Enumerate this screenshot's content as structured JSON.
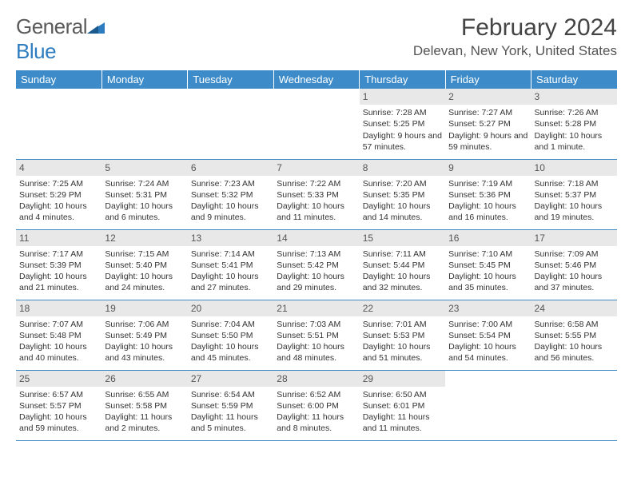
{
  "logo": {
    "word1": "General",
    "word2": "Blue"
  },
  "title": "February 2024",
  "location": "Delevan, New York, United States",
  "colors": {
    "header_bg": "#3d8cc9",
    "header_text": "#ffffff",
    "daynum_bg": "#e8e8e8",
    "daynum_text": "#555555",
    "border": "#3d8cc9",
    "logo_blue": "#2d7cc0",
    "logo_gray": "#5a5a5a"
  },
  "weekdays": [
    "Sunday",
    "Monday",
    "Tuesday",
    "Wednesday",
    "Thursday",
    "Friday",
    "Saturday"
  ],
  "weeks": [
    [
      null,
      null,
      null,
      null,
      {
        "n": "1",
        "sr": "Sunrise: 7:28 AM",
        "ss": "Sunset: 5:25 PM",
        "dl": "Daylight: 9 hours and 57 minutes."
      },
      {
        "n": "2",
        "sr": "Sunrise: 7:27 AM",
        "ss": "Sunset: 5:27 PM",
        "dl": "Daylight: 9 hours and 59 minutes."
      },
      {
        "n": "3",
        "sr": "Sunrise: 7:26 AM",
        "ss": "Sunset: 5:28 PM",
        "dl": "Daylight: 10 hours and 1 minute."
      }
    ],
    [
      {
        "n": "4",
        "sr": "Sunrise: 7:25 AM",
        "ss": "Sunset: 5:29 PM",
        "dl": "Daylight: 10 hours and 4 minutes."
      },
      {
        "n": "5",
        "sr": "Sunrise: 7:24 AM",
        "ss": "Sunset: 5:31 PM",
        "dl": "Daylight: 10 hours and 6 minutes."
      },
      {
        "n": "6",
        "sr": "Sunrise: 7:23 AM",
        "ss": "Sunset: 5:32 PM",
        "dl": "Daylight: 10 hours and 9 minutes."
      },
      {
        "n": "7",
        "sr": "Sunrise: 7:22 AM",
        "ss": "Sunset: 5:33 PM",
        "dl": "Daylight: 10 hours and 11 minutes."
      },
      {
        "n": "8",
        "sr": "Sunrise: 7:20 AM",
        "ss": "Sunset: 5:35 PM",
        "dl": "Daylight: 10 hours and 14 minutes."
      },
      {
        "n": "9",
        "sr": "Sunrise: 7:19 AM",
        "ss": "Sunset: 5:36 PM",
        "dl": "Daylight: 10 hours and 16 minutes."
      },
      {
        "n": "10",
        "sr": "Sunrise: 7:18 AM",
        "ss": "Sunset: 5:37 PM",
        "dl": "Daylight: 10 hours and 19 minutes."
      }
    ],
    [
      {
        "n": "11",
        "sr": "Sunrise: 7:17 AM",
        "ss": "Sunset: 5:39 PM",
        "dl": "Daylight: 10 hours and 21 minutes."
      },
      {
        "n": "12",
        "sr": "Sunrise: 7:15 AM",
        "ss": "Sunset: 5:40 PM",
        "dl": "Daylight: 10 hours and 24 minutes."
      },
      {
        "n": "13",
        "sr": "Sunrise: 7:14 AM",
        "ss": "Sunset: 5:41 PM",
        "dl": "Daylight: 10 hours and 27 minutes."
      },
      {
        "n": "14",
        "sr": "Sunrise: 7:13 AM",
        "ss": "Sunset: 5:42 PM",
        "dl": "Daylight: 10 hours and 29 minutes."
      },
      {
        "n": "15",
        "sr": "Sunrise: 7:11 AM",
        "ss": "Sunset: 5:44 PM",
        "dl": "Daylight: 10 hours and 32 minutes."
      },
      {
        "n": "16",
        "sr": "Sunrise: 7:10 AM",
        "ss": "Sunset: 5:45 PM",
        "dl": "Daylight: 10 hours and 35 minutes."
      },
      {
        "n": "17",
        "sr": "Sunrise: 7:09 AM",
        "ss": "Sunset: 5:46 PM",
        "dl": "Daylight: 10 hours and 37 minutes."
      }
    ],
    [
      {
        "n": "18",
        "sr": "Sunrise: 7:07 AM",
        "ss": "Sunset: 5:48 PM",
        "dl": "Daylight: 10 hours and 40 minutes."
      },
      {
        "n": "19",
        "sr": "Sunrise: 7:06 AM",
        "ss": "Sunset: 5:49 PM",
        "dl": "Daylight: 10 hours and 43 minutes."
      },
      {
        "n": "20",
        "sr": "Sunrise: 7:04 AM",
        "ss": "Sunset: 5:50 PM",
        "dl": "Daylight: 10 hours and 45 minutes."
      },
      {
        "n": "21",
        "sr": "Sunrise: 7:03 AM",
        "ss": "Sunset: 5:51 PM",
        "dl": "Daylight: 10 hours and 48 minutes."
      },
      {
        "n": "22",
        "sr": "Sunrise: 7:01 AM",
        "ss": "Sunset: 5:53 PM",
        "dl": "Daylight: 10 hours and 51 minutes."
      },
      {
        "n": "23",
        "sr": "Sunrise: 7:00 AM",
        "ss": "Sunset: 5:54 PM",
        "dl": "Daylight: 10 hours and 54 minutes."
      },
      {
        "n": "24",
        "sr": "Sunrise: 6:58 AM",
        "ss": "Sunset: 5:55 PM",
        "dl": "Daylight: 10 hours and 56 minutes."
      }
    ],
    [
      {
        "n": "25",
        "sr": "Sunrise: 6:57 AM",
        "ss": "Sunset: 5:57 PM",
        "dl": "Daylight: 10 hours and 59 minutes."
      },
      {
        "n": "26",
        "sr": "Sunrise: 6:55 AM",
        "ss": "Sunset: 5:58 PM",
        "dl": "Daylight: 11 hours and 2 minutes."
      },
      {
        "n": "27",
        "sr": "Sunrise: 6:54 AM",
        "ss": "Sunset: 5:59 PM",
        "dl": "Daylight: 11 hours and 5 minutes."
      },
      {
        "n": "28",
        "sr": "Sunrise: 6:52 AM",
        "ss": "Sunset: 6:00 PM",
        "dl": "Daylight: 11 hours and 8 minutes."
      },
      {
        "n": "29",
        "sr": "Sunrise: 6:50 AM",
        "ss": "Sunset: 6:01 PM",
        "dl": "Daylight: 11 hours and 11 minutes."
      },
      null,
      null
    ]
  ]
}
